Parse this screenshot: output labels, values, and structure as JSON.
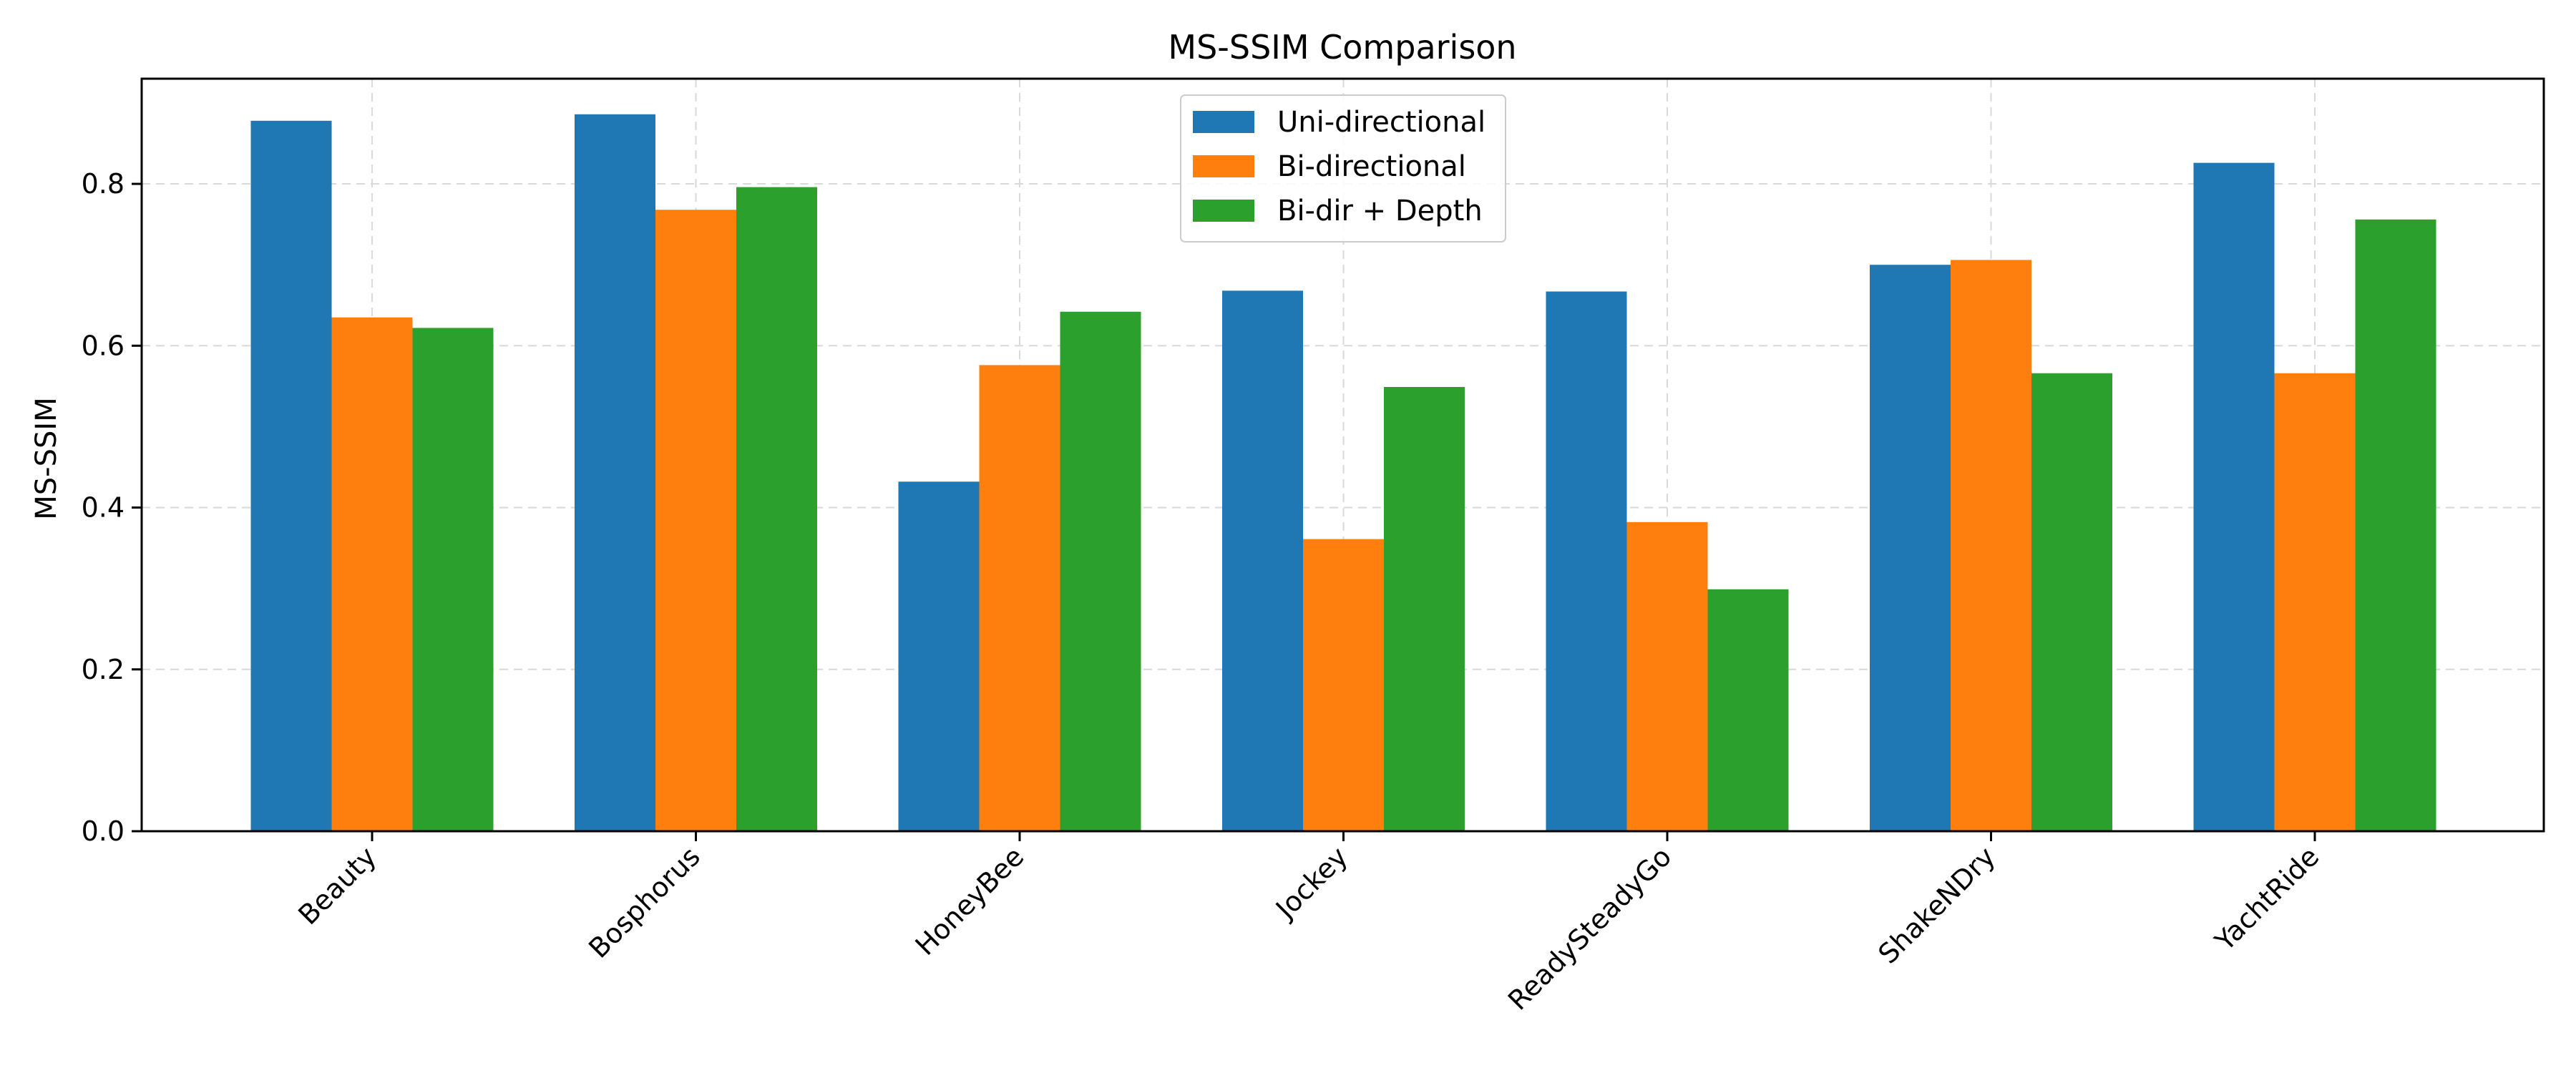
{
  "chart_data": {
    "type": "bar",
    "title": "MS-SSIM Comparison",
    "xlabel": "",
    "ylabel": "MS-SSIM",
    "categories": [
      "Beauty",
      "Bosphorus",
      "HoneyBee",
      "Jockey",
      "ReadySteadyGo",
      "ShakeNDry",
      "YachtRide"
    ],
    "series": [
      {
        "name": "Uni-directional",
        "color": "#1f77b4",
        "values": [
          0.878,
          0.886,
          0.432,
          0.668,
          0.667,
          0.7,
          0.826
        ]
      },
      {
        "name": "Bi-directional",
        "color": "#ff7f0e",
        "values": [
          0.635,
          0.768,
          0.576,
          0.361,
          0.382,
          0.706,
          0.566
        ]
      },
      {
        "name": "Bi-dir + Depth",
        "color": "#2ca02c",
        "values": [
          0.622,
          0.796,
          0.642,
          0.549,
          0.299,
          0.566,
          0.756
        ]
      }
    ],
    "yticks": [
      "0.0",
      "0.2",
      "0.4",
      "0.6",
      "0.8"
    ],
    "ylim": [
      0,
      0.93
    ],
    "grid": true,
    "legend_position": "top-center"
  }
}
